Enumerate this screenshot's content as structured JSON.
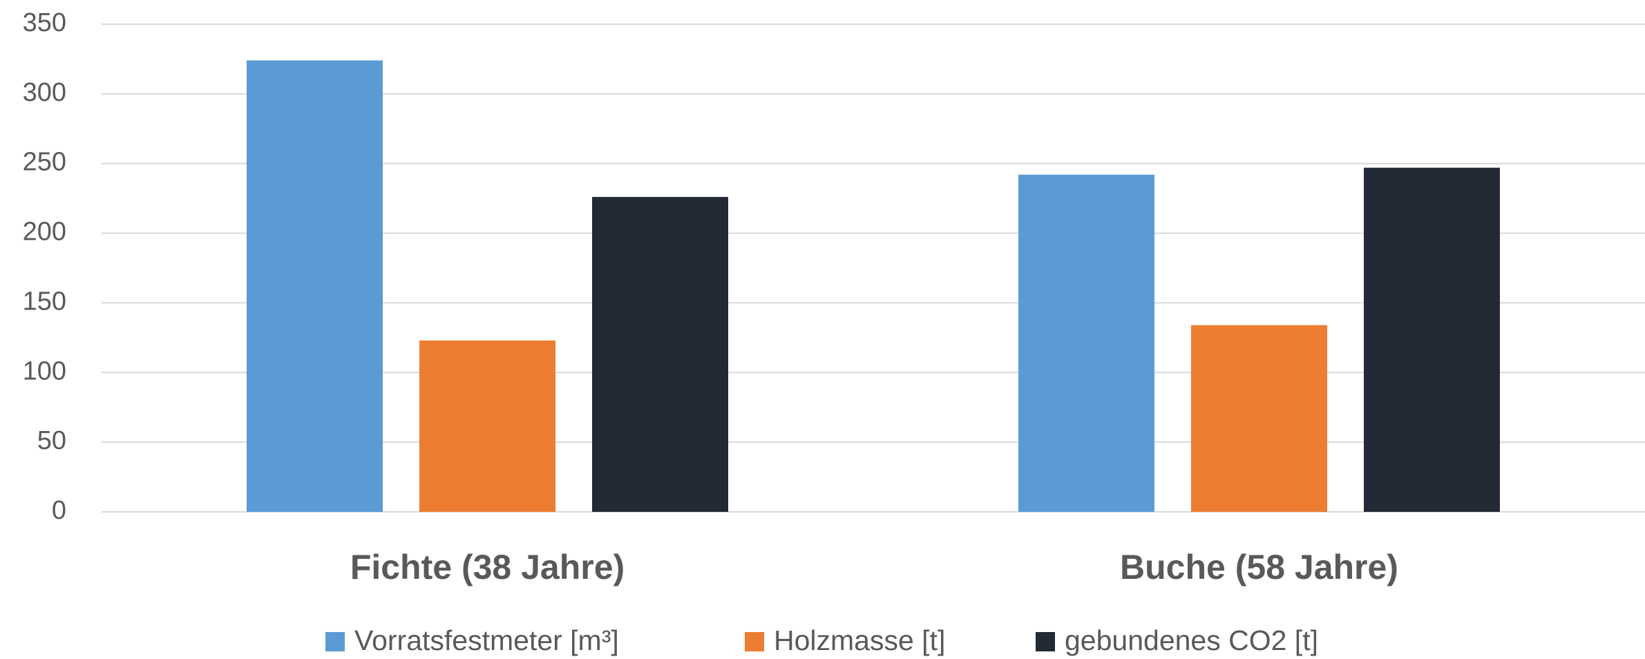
{
  "chart_data": {
    "type": "bar",
    "categories": [
      "Fichte (38 Jahre)",
      "Buche (58 Jahre)"
    ],
    "series": [
      {
        "name": "Vorratsfestmeter [m³]",
        "color": "#5b9bd5",
        "values": [
          324,
          242
        ]
      },
      {
        "name": "Holzmasse [t]",
        "color": "#ed7d31",
        "values": [
          123,
          134
        ]
      },
      {
        "name": "gebundenes CO2 [t]",
        "color": "#232a35",
        "values": [
          226,
          247
        ]
      }
    ],
    "ylim": [
      0,
      350
    ],
    "yticks": [
      0,
      50,
      100,
      150,
      200,
      250,
      300,
      350
    ],
    "grid": true,
    "legend": "bottom"
  }
}
